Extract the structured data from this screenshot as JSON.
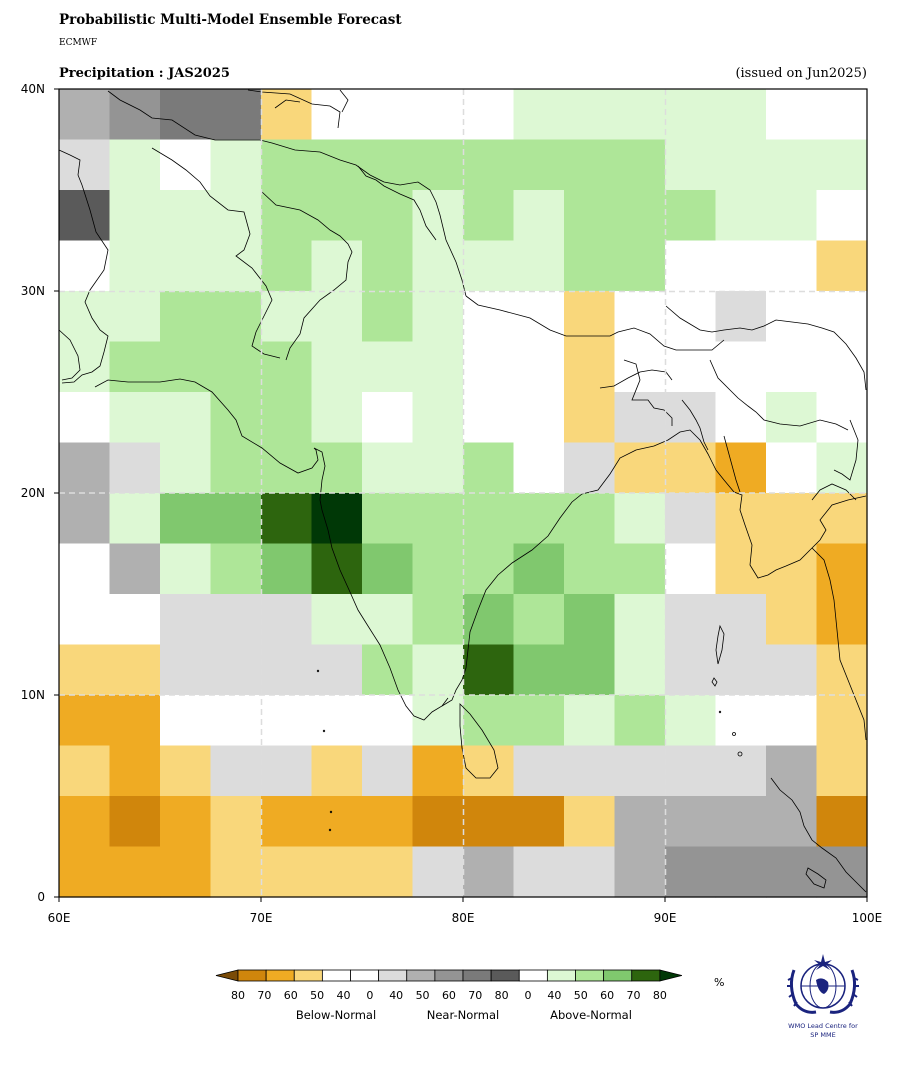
{
  "header": {
    "title": "Probabilistic Multi-Model Ensemble Forecast",
    "org": "ECMWF",
    "subtitle": "Precipitation : JAS2025",
    "issued": "(issued on Jun2025)"
  },
  "axes": {
    "lon_labels": [
      "60E",
      "70E",
      "80E",
      "90E",
      "100E"
    ],
    "lat_labels": [
      "0",
      "10N",
      "20N",
      "30N",
      "40N"
    ],
    "lon_range": [
      60,
      100
    ],
    "lat_range": [
      0,
      40
    ],
    "gridlines": true
  },
  "legend": {
    "numbers": [
      "80",
      "70",
      "60",
      "50",
      "40",
      "0",
      "40",
      "50",
      "60",
      "70",
      "80",
      "0",
      "40",
      "50",
      "60",
      "70",
      "80"
    ],
    "unit": "%",
    "categories": [
      "Below-Normal",
      "Near-Normal",
      "Above-Normal"
    ],
    "colors": [
      "#7a4b07",
      "#d0860c",
      "#efab23",
      "#f9d77b",
      "#ffffff",
      "#ffffff",
      "#dcdcdc",
      "#b0b0b0",
      "#949494",
      "#7a7a7a",
      "#5a5a5a",
      "#ffffff",
      "#ddf8d4",
      "#aee698",
      "#80c86e",
      "#2d650e",
      "#003806"
    ]
  },
  "logo": {
    "line1": "WMO Lead Centre for",
    "line2": "SP MME"
  },
  "grid_cells": {
    "lon_start": 60,
    "lat_start": 40,
    "cell_deg": 2.5,
    "palette": {
      "W": "#ffffff",
      "a1": "#ddf8d4",
      "a2": "#aee698",
      "a3": "#80c86e",
      "a4": "#2d650e",
      "a5": "#003806",
      "b1": "#f9d77b",
      "b2": "#efab23",
      "b3": "#d0860c",
      "n1": "#dcdcdc",
      "n2": "#b0b0b0",
      "n3": "#949494",
      "n4": "#7a7a7a",
      "n5": "#5a5a5a"
    },
    "rows": [
      [
        "n2",
        "n3",
        "n4",
        "n4",
        "b1",
        "W",
        "W",
        "W",
        "W",
        "a1",
        "a1",
        "a1",
        "a1",
        "a1",
        "W",
        "W"
      ],
      [
        "n1",
        "a1",
        "W",
        "a1",
        "a2",
        "a2",
        "a2",
        "a2",
        "a2",
        "a2",
        "a2",
        "a2",
        "a1",
        "a1",
        "a1",
        "a1"
      ],
      [
        "n5",
        "a1",
        "a1",
        "a1",
        "a2",
        "a2",
        "a2",
        "a1",
        "a2",
        "a1",
        "a2",
        "a2",
        "a2",
        "a1",
        "a1",
        "W"
      ],
      [
        "W",
        "a1",
        "a1",
        "a1",
        "a2",
        "a1",
        "a2",
        "a1",
        "a1",
        "a1",
        "a2",
        "a2",
        "W",
        "W",
        "W",
        "b1"
      ],
      [
        "a1",
        "a1",
        "a2",
        "a2",
        "a1",
        "a1",
        "a2",
        "a1",
        "W",
        "W",
        "b1",
        "W",
        "W",
        "n1",
        "W",
        "W"
      ],
      [
        "a1",
        "a2",
        "a2",
        "a2",
        "a2",
        "a1",
        "a1",
        "a1",
        "W",
        "W",
        "b1",
        "W",
        "W",
        "W",
        "W",
        "W"
      ],
      [
        "W",
        "a1",
        "a1",
        "a2",
        "a2",
        "a1",
        "W",
        "a1",
        "W",
        "W",
        "b1",
        "n1",
        "n1",
        "W",
        "a1",
        "W"
      ],
      [
        "n2",
        "n1",
        "a1",
        "a2",
        "a2",
        "a2",
        "a1",
        "a1",
        "a2",
        "W",
        "n1",
        "b1",
        "b1",
        "b2",
        "W",
        "a1"
      ],
      [
        "n2",
        "a1",
        "a3",
        "a3",
        "a4",
        "a5",
        "a2",
        "a2",
        "a2",
        "a2",
        "a2",
        "a1",
        "n1",
        "b1",
        "b1",
        "b1"
      ],
      [
        "W",
        "n2",
        "a1",
        "a2",
        "a3",
        "a4",
        "a3",
        "a2",
        "a2",
        "a3",
        "a2",
        "a2",
        "W",
        "b1",
        "b1",
        "b2"
      ],
      [
        "W",
        "W",
        "n1",
        "n1",
        "n1",
        "a1",
        "a1",
        "a2",
        "a3",
        "a2",
        "a3",
        "a1",
        "n1",
        "n1",
        "b1",
        "b2"
      ],
      [
        "b1",
        "b1",
        "n1",
        "n1",
        "n1",
        "n1",
        "a2",
        "a1",
        "a4",
        "a3",
        "a3",
        "a1",
        "n1",
        "n1",
        "n1",
        "b1"
      ],
      [
        "b2",
        "b2",
        "W",
        "W",
        "W",
        "W",
        "W",
        "a1",
        "a2",
        "a2",
        "a1",
        "a2",
        "a1",
        "W",
        "W",
        "b1"
      ],
      [
        "b1",
        "b2",
        "b1",
        "n1",
        "n1",
        "b1",
        "n1",
        "b2",
        "b1",
        "n1",
        "n1",
        "n1",
        "n1",
        "n1",
        "n2",
        "b1"
      ],
      [
        "b2",
        "b3",
        "b2",
        "b1",
        "b2",
        "b2",
        "b2",
        "b3",
        "b3",
        "b3",
        "b1",
        "n2",
        "n2",
        "n2",
        "n2",
        "b3"
      ],
      [
        "b2",
        "b2",
        "b2",
        "b1",
        "b1",
        "b1",
        "b1",
        "n1",
        "n2",
        "n1",
        "n1",
        "n2",
        "n3",
        "n3",
        "n3",
        "n3"
      ]
    ]
  }
}
